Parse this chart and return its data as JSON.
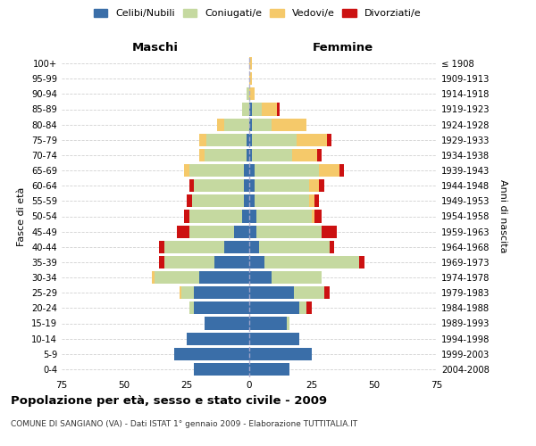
{
  "age_groups": [
    "0-4",
    "5-9",
    "10-14",
    "15-19",
    "20-24",
    "25-29",
    "30-34",
    "35-39",
    "40-44",
    "45-49",
    "50-54",
    "55-59",
    "60-64",
    "65-69",
    "70-74",
    "75-79",
    "80-84",
    "85-89",
    "90-94",
    "95-99",
    "100+"
  ],
  "birth_years": [
    "2004-2008",
    "1999-2003",
    "1994-1998",
    "1989-1993",
    "1984-1988",
    "1979-1983",
    "1974-1978",
    "1969-1973",
    "1964-1968",
    "1959-1963",
    "1954-1958",
    "1949-1953",
    "1944-1948",
    "1939-1943",
    "1934-1938",
    "1929-1933",
    "1924-1928",
    "1919-1923",
    "1914-1918",
    "1909-1913",
    "≤ 1908"
  ],
  "male_celibi": [
    22,
    30,
    25,
    18,
    22,
    22,
    20,
    14,
    10,
    6,
    3,
    2,
    2,
    2,
    1,
    1,
    0,
    0,
    0,
    0,
    0
  ],
  "male_coniugati": [
    0,
    0,
    0,
    0,
    2,
    5,
    18,
    20,
    24,
    18,
    21,
    21,
    20,
    22,
    17,
    16,
    10,
    3,
    1,
    0,
    0
  ],
  "male_vedovi": [
    0,
    0,
    0,
    0,
    0,
    1,
    1,
    0,
    0,
    0,
    0,
    0,
    0,
    2,
    2,
    3,
    3,
    0,
    0,
    0,
    0
  ],
  "male_divorziati": [
    0,
    0,
    0,
    0,
    0,
    0,
    0,
    2,
    2,
    5,
    2,
    2,
    2,
    0,
    0,
    0,
    0,
    0,
    0,
    0,
    0
  ],
  "female_celibi": [
    16,
    25,
    20,
    15,
    20,
    18,
    9,
    6,
    4,
    3,
    3,
    2,
    2,
    2,
    1,
    1,
    1,
    1,
    0,
    0,
    0
  ],
  "female_coniugati": [
    0,
    0,
    0,
    1,
    3,
    12,
    20,
    38,
    28,
    26,
    22,
    22,
    22,
    26,
    16,
    18,
    8,
    4,
    0,
    0,
    0
  ],
  "female_vedovi": [
    0,
    0,
    0,
    0,
    0,
    0,
    0,
    0,
    0,
    0,
    1,
    2,
    4,
    8,
    10,
    12,
    14,
    6,
    2,
    1,
    1
  ],
  "female_divorziati": [
    0,
    0,
    0,
    0,
    2,
    2,
    0,
    2,
    2,
    6,
    3,
    2,
    2,
    2,
    2,
    2,
    0,
    1,
    0,
    0,
    0
  ],
  "colors": {
    "celibi": "#3a6ea8",
    "coniugati": "#c5d9a0",
    "vedovi": "#f5c96a",
    "divorziati": "#cc1111"
  },
  "title": "Popolazione per età, sesso e stato civile - 2009",
  "subtitle": "COMUNE DI SANGIANO (VA) - Dati ISTAT 1° gennaio 2009 - Elaborazione TUTTITALIA.IT",
  "xlabel_left": "Maschi",
  "xlabel_right": "Femmine",
  "ylabel_left": "Fasce di età",
  "ylabel_right": "Anni di nascita",
  "xlim": 75,
  "background_color": "#ffffff",
  "grid_color": "#cccccc",
  "legend_labels": [
    "Celibi/Nubili",
    "Coniugati/e",
    "Vedovi/e",
    "Divorziati/e"
  ]
}
